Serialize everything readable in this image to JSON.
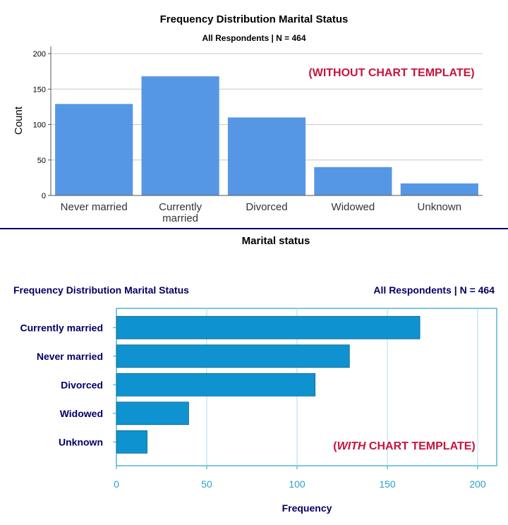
{
  "top": {
    "title": "Frequency Distribution Marital Status",
    "subtitle": "All Respondents | N = 464",
    "annotation": "(WITHOUT CHART TEMPLATE)",
    "colors": {
      "bar": "#5597E5",
      "annotation": "#C8143C",
      "axis_text": "#000000",
      "divider": "#000066"
    }
  },
  "bottom": {
    "title": "Frequency Distribution Marital Status",
    "subtitle": "All Respondents | N = 464",
    "annotation_prefix": "(",
    "annotation_italic": "WITH",
    "annotation_suffix": " CHART TEMPLATE)",
    "colors": {
      "bar": "#0F93D0",
      "frame": "#2AA3C9",
      "label": "#000066",
      "tick": "#2AA3C9",
      "annotation": "#C8143C"
    }
  },
  "chart_data": [
    {
      "type": "bar",
      "orientation": "vertical",
      "title": "Frequency Distribution Marital Status",
      "subtitle": "All Respondents | N = 464",
      "categories": [
        "Never married",
        "Currently married",
        "Divorced",
        "Widowed",
        "Unknown"
      ],
      "values": [
        129,
        168,
        110,
        40,
        17
      ],
      "xlabel": "Marital status",
      "ylabel": "Count",
      "ylim": [
        0,
        200
      ],
      "yticks": [
        0,
        50,
        100,
        150,
        200
      ],
      "grid": true
    },
    {
      "type": "bar",
      "orientation": "horizontal",
      "title": "Frequency Distribution Marital Status",
      "subtitle": "All Respondents | N = 464",
      "categories": [
        "Currently married",
        "Never married",
        "Divorced",
        "Widowed",
        "Unknown"
      ],
      "values": [
        168,
        129,
        110,
        40,
        17
      ],
      "xlabel": "Frequency",
      "ylabel": "",
      "xlim": [
        0,
        200
      ],
      "xticks": [
        0,
        50,
        100,
        150,
        200
      ],
      "grid": true
    }
  ]
}
